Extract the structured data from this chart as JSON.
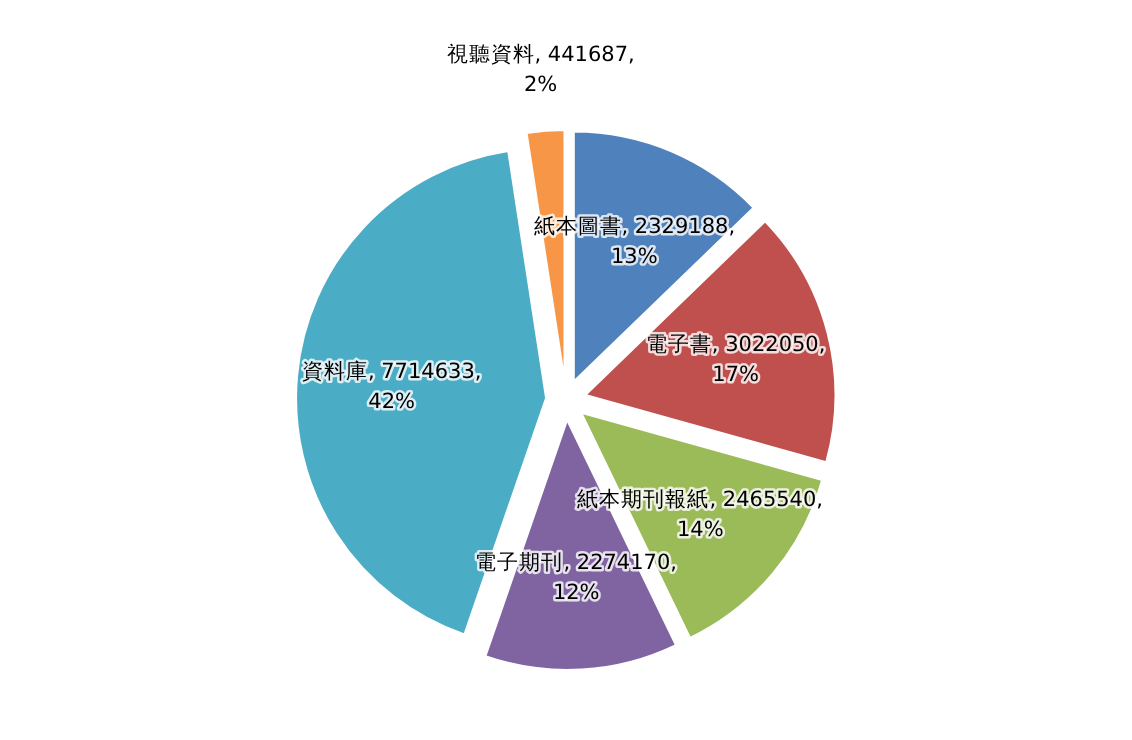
{
  "chart_data": {
    "type": "pie",
    "categories": [
      "紙本圖書",
      "電子書",
      "紙本期刊報紙",
      "電子期刊",
      "資料庫",
      "視聽資料"
    ],
    "values": [
      2329188,
      3022050,
      2465540,
      2274170,
      7714633,
      441687
    ],
    "value_labels": [
      "2329188, 13%",
      "3022050, 17%",
      "2465540, 14%",
      "2274170, 12%",
      "7714633, 42%",
      "441687, 2%"
    ],
    "colors": [
      "#4f81bd",
      "#c0504d",
      "#9bbb59",
      "#8064a2",
      "#4bacc6",
      "#f79646"
    ],
    "legend": false
  }
}
